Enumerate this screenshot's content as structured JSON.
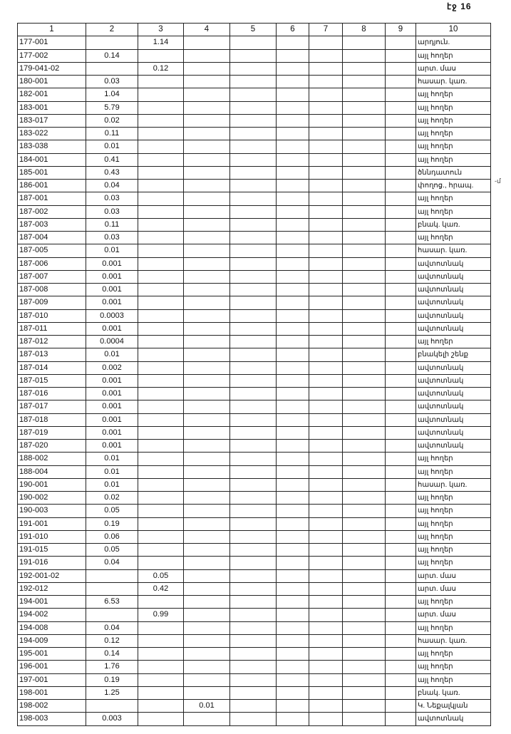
{
  "page_number": "էջ 16",
  "margin_note": "-մ",
  "columns": [
    "1",
    "2",
    "3",
    "4",
    "5",
    "6",
    "7",
    "8",
    "9",
    "10"
  ],
  "rows": [
    [
      "177-001",
      "",
      "1.14",
      "",
      "",
      "",
      "",
      "",
      "",
      "արդյուն."
    ],
    [
      "177-002",
      "0.14",
      "",
      "",
      "",
      "",
      "",
      "",
      "",
      "այլ հողեր"
    ],
    [
      "179-041-02",
      "",
      "0.12",
      "",
      "",
      "",
      "",
      "",
      "",
      "արտ. մաս"
    ],
    [
      "180-001",
      "0.03",
      "",
      "",
      "",
      "",
      "",
      "",
      "",
      "հասար. կառ."
    ],
    [
      "182-001",
      "1.04",
      "",
      "",
      "",
      "",
      "",
      "",
      "",
      "այլ հողեր"
    ],
    [
      "183-001",
      "5.79",
      "",
      "",
      "",
      "",
      "",
      "",
      "",
      "այլ հողեր"
    ],
    [
      "183-017",
      "0.02",
      "",
      "",
      "",
      "",
      "",
      "",
      "",
      "այլ հողեր"
    ],
    [
      "183-022",
      "0.11",
      "",
      "",
      "",
      "",
      "",
      "",
      "",
      "այլ հողեր"
    ],
    [
      "183-038",
      "0.01",
      "",
      "",
      "",
      "",
      "",
      "",
      "",
      "այլ հողեր"
    ],
    [
      "184-001",
      "0.41",
      "",
      "",
      "",
      "",
      "",
      "",
      "",
      "այլ հողեր"
    ],
    [
      "185-001",
      "0.43",
      "",
      "",
      "",
      "",
      "",
      "",
      "",
      "ծննդատուն"
    ],
    [
      "186-001",
      "0.04",
      "",
      "",
      "",
      "",
      "",
      "",
      "",
      "փողոց., հրապ."
    ],
    [
      "187-001",
      "0.03",
      "",
      "",
      "",
      "",
      "",
      "",
      "",
      "այլ հողեր"
    ],
    [
      "187-002",
      "0.03",
      "",
      "",
      "",
      "",
      "",
      "",
      "",
      "այլ հողեր"
    ],
    [
      "187-003",
      "0.11",
      "",
      "",
      "",
      "",
      "",
      "",
      "",
      "բնակ. կառ."
    ],
    [
      "187-004",
      "0.03",
      "",
      "",
      "",
      "",
      "",
      "",
      "",
      "այլ հողեր"
    ],
    [
      "187-005",
      "0.01",
      "",
      "",
      "",
      "",
      "",
      "",
      "",
      "հասար. կառ."
    ],
    [
      "187-006",
      "0.001",
      "",
      "",
      "",
      "",
      "",
      "",
      "",
      "ավտոտնակ"
    ],
    [
      "187-007",
      "0.001",
      "",
      "",
      "",
      "",
      "",
      "",
      "",
      "ավտոտնակ"
    ],
    [
      "187-008",
      "0.001",
      "",
      "",
      "",
      "",
      "",
      "",
      "",
      "ավտոտնակ"
    ],
    [
      "187-009",
      "0.001",
      "",
      "",
      "",
      "",
      "",
      "",
      "",
      "ավտոտնակ"
    ],
    [
      "187-010",
      "0.0003",
      "",
      "",
      "",
      "",
      "",
      "",
      "",
      "ավտոտնակ"
    ],
    [
      "187-011",
      "0.001",
      "",
      "",
      "",
      "",
      "",
      "",
      "",
      "ավտոտնակ"
    ],
    [
      "187-012",
      "0.0004",
      "",
      "",
      "",
      "",
      "",
      "",
      "",
      "այլ հողեր"
    ],
    [
      "187-013",
      "0.01",
      "",
      "",
      "",
      "",
      "",
      "",
      "",
      "բնակելի շենք"
    ],
    [
      "187-014",
      "0.002",
      "",
      "",
      "",
      "",
      "",
      "",
      "",
      "ավտոտնակ"
    ],
    [
      "187-015",
      "0.001",
      "",
      "",
      "",
      "",
      "",
      "",
      "",
      "ավտոտնակ"
    ],
    [
      "187-016",
      "0.001",
      "",
      "",
      "",
      "",
      "",
      "",
      "",
      "ավտոտնակ"
    ],
    [
      "187-017",
      "0.001",
      "",
      "",
      "",
      "",
      "",
      "",
      "",
      "ավտոտնակ"
    ],
    [
      "187-018",
      "0.001",
      "",
      "",
      "",
      "",
      "",
      "",
      "",
      "ավտոտնակ"
    ],
    [
      "187-019",
      "0.001",
      "",
      "",
      "",
      "",
      "",
      "",
      "",
      "ավտոտնակ"
    ],
    [
      "187-020",
      "0.001",
      "",
      "",
      "",
      "",
      "",
      "",
      "",
      "ավտոտնակ"
    ],
    [
      "188-002",
      "0.01",
      "",
      "",
      "",
      "",
      "",
      "",
      "",
      "այլ հողեր"
    ],
    [
      "188-004",
      "0.01",
      "",
      "",
      "",
      "",
      "",
      "",
      "",
      "այլ հողեր"
    ],
    [
      "190-001",
      "0.01",
      "",
      "",
      "",
      "",
      "",
      "",
      "",
      "հասար. կառ."
    ],
    [
      "190-002",
      "0.02",
      "",
      "",
      "",
      "",
      "",
      "",
      "",
      "այլ հողեր"
    ],
    [
      "190-003",
      "0.05",
      "",
      "",
      "",
      "",
      "",
      "",
      "",
      "այլ հողեր"
    ],
    [
      "191-001",
      "0.19",
      "",
      "",
      "",
      "",
      "",
      "",
      "",
      "այլ հողեր"
    ],
    [
      "191-010",
      "0.06",
      "",
      "",
      "",
      "",
      "",
      "",
      "",
      "այլ հողեր"
    ],
    [
      "191-015",
      "0.05",
      "",
      "",
      "",
      "",
      "",
      "",
      "",
      "այլ հողեր"
    ],
    [
      "191-016",
      "0.04",
      "",
      "",
      "",
      "",
      "",
      "",
      "",
      "այլ հողեր"
    ],
    [
      "192-001-02",
      "",
      "0.05",
      "",
      "",
      "",
      "",
      "",
      "",
      "արտ. մաս"
    ],
    [
      "192-012",
      "",
      "0.42",
      "",
      "",
      "",
      "",
      "",
      "",
      "արտ. մաս"
    ],
    [
      "194-001",
      "6.53",
      "",
      "",
      "",
      "",
      "",
      "",
      "",
      "այլ հողեր"
    ],
    [
      "194-002",
      "",
      "0.99",
      "",
      "",
      "",
      "",
      "",
      "",
      "արտ. մաս"
    ],
    [
      "194-008",
      "0.04",
      "",
      "",
      "",
      "",
      "",
      "",
      "",
      "այլ հողեր"
    ],
    [
      "194-009",
      "0.12",
      "",
      "",
      "",
      "",
      "",
      "",
      "",
      "հասար. կառ."
    ],
    [
      "195-001",
      "0.14",
      "",
      "",
      "",
      "",
      "",
      "",
      "",
      "այլ հողեր"
    ],
    [
      "196-001",
      "1.76",
      "",
      "",
      "",
      "",
      "",
      "",
      "",
      "այլ հողեր"
    ],
    [
      "197-001",
      "0.19",
      "",
      "",
      "",
      "",
      "",
      "",
      "",
      "այլ հողեր"
    ],
    [
      "198-001",
      "1.25",
      "",
      "",
      "",
      "",
      "",
      "",
      "",
      "բնակ. կառ."
    ],
    [
      "198-002",
      "",
      "",
      "0.01",
      "",
      "",
      "",
      "",
      "",
      "Կ. Նեքալկյան"
    ],
    [
      "198-003",
      "0.003",
      "",
      "",
      "",
      "",
      "",
      "",
      "",
      "ավտոտնակ"
    ]
  ]
}
